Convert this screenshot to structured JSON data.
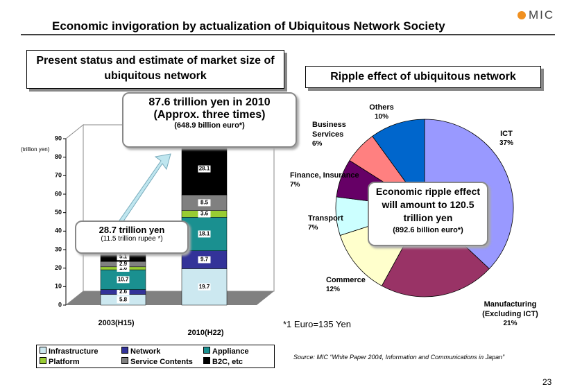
{
  "header": {
    "title": "Economic invigoration by actualization of Ubiquitous Network Society",
    "logo": "MIC"
  },
  "chart_data": [
    {
      "type": "stacked_bar",
      "title": "Present status and estimate of market size of ubiquitous network",
      "y_label": "(trillion yen)",
      "categories": [
        "2003(H15)",
        "2010(H22)"
      ],
      "series": [
        {
          "name": "Infrastructure",
          "color": "#cce8f0",
          "values": [
            5.8,
            19.7
          ]
        },
        {
          "name": "Network",
          "color": "#333399",
          "values": [
            2.6,
            9.7
          ]
        },
        {
          "name": "Appliance",
          "color": "#1a9090",
          "values": [
            10.7,
            18.1
          ]
        },
        {
          "name": "Platform",
          "color": "#99cc33",
          "values": [
            1.6,
            3.6
          ]
        },
        {
          "name": "Service Contents",
          "color": "#808080",
          "values": [
            2.9,
            8.5
          ]
        },
        {
          "name": "B2C, etc",
          "color": "#000000",
          "values": [
            5.1,
            28.1
          ]
        }
      ],
      "ylim": [
        0,
        90
      ],
      "yticks": [
        0,
        10,
        20,
        30,
        40,
        50,
        60,
        70,
        80,
        90
      ],
      "legend": "bottom"
    },
    {
      "type": "pie",
      "title": "Ripple effect of ubiquitous network",
      "categories": [
        "ICT",
        "Manufacturing (Excluding ICT)",
        "Commerce",
        "Transport",
        "Finance, Insurance",
        "Business Services",
        "Others"
      ],
      "values": [
        37,
        21,
        12,
        7,
        7,
        6,
        10
      ],
      "value_labels": [
        "37%",
        "21%",
        "12%",
        "7%",
        "7%",
        "6%",
        "10%"
      ],
      "colors": [
        "#9999ff",
        "#993366",
        "#ffffcc",
        "#ccffff",
        "#660066",
        "#ff8080",
        "#0066cc"
      ]
    }
  ],
  "callouts": {
    "total_2010": [
      "87.6 trillion yen in 2010",
      "(Approx. three times)",
      "(648.9 billion euro*)"
    ],
    "total_2003": [
      "28.7 trillion yen",
      "(11.5 trillion rupee *)"
    ],
    "ripple": [
      "Economic ripple effect will amount to 120.5 trillion yen",
      "(892.6 billion euro*)"
    ]
  },
  "footnote": "*1 Euro=135 Yen",
  "source": "Source: MIC “White Paper 2004, Information and Communications in Japan”",
  "page_number": "23"
}
